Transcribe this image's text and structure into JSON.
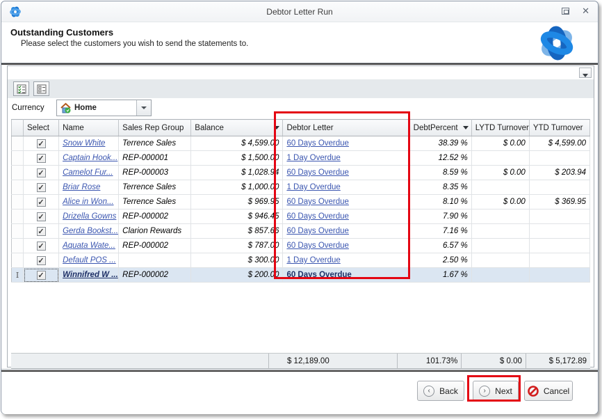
{
  "window": {
    "title": "Debtor Letter Run"
  },
  "header": {
    "title": "Outstanding Customers",
    "subtitle": "Please select the customers you wish to send the statements to."
  },
  "toolbar": {
    "currency_label": "Currency",
    "currency_value": "Home"
  },
  "grid": {
    "columns": [
      "Select",
      "Name",
      "Sales Rep Group",
      "Balance",
      "Debtor Letter",
      "DebtPercent",
      "LYTD Turnover",
      "YTD Turnover"
    ],
    "rows": [
      {
        "checked": true,
        "name": "Snow White",
        "sales_rep_group": "Terrence Sales",
        "balance": "$ 4,599.00",
        "debtor_letter": "60 Days Overdue",
        "debt_percent": "38.39 %",
        "lytd_turnover": "$ 0.00",
        "ytd_turnover": "$ 4,599.00"
      },
      {
        "checked": true,
        "name": "Captain Hook...",
        "sales_rep_group": "REP-000001",
        "balance": "$ 1,500.00",
        "debtor_letter": "1 Day Overdue",
        "debt_percent": "12.52 %",
        "lytd_turnover": "",
        "ytd_turnover": ""
      },
      {
        "checked": true,
        "name": "Camelot Fur...",
        "sales_rep_group": "REP-000003",
        "balance": "$ 1,028.94",
        "debtor_letter": "60 Days Overdue",
        "debt_percent": "8.59 %",
        "lytd_turnover": "$ 0.00",
        "ytd_turnover": "$ 203.94"
      },
      {
        "checked": true,
        "name": "Briar Rose",
        "sales_rep_group": "Terrence Sales",
        "balance": "$ 1,000.00",
        "debtor_letter": "1 Day Overdue",
        "debt_percent": "8.35 %",
        "lytd_turnover": "",
        "ytd_turnover": ""
      },
      {
        "checked": true,
        "name": "Alice in Won...",
        "sales_rep_group": "Terrence Sales",
        "balance": "$ 969.95",
        "debtor_letter": "60 Days Overdue",
        "debt_percent": "8.10 %",
        "lytd_turnover": "$ 0.00",
        "ytd_turnover": "$ 369.95"
      },
      {
        "checked": true,
        "name": "Drizella Gowns",
        "sales_rep_group": "REP-000002",
        "balance": "$ 946.45",
        "debtor_letter": "60 Days Overdue",
        "debt_percent": "7.90 %",
        "lytd_turnover": "",
        "ytd_turnover": ""
      },
      {
        "checked": true,
        "name": "Gerda Bookst...",
        "sales_rep_group": "Clarion Rewards",
        "balance": "$ 857.66",
        "debtor_letter": "60 Days Overdue",
        "debt_percent": "7.16 %",
        "lytd_turnover": "",
        "ytd_turnover": ""
      },
      {
        "checked": true,
        "name": "Aquata Wate...",
        "sales_rep_group": "REP-000002",
        "balance": "$ 787.00",
        "debtor_letter": "60 Days Overdue",
        "debt_percent": "6.57 %",
        "lytd_turnover": "",
        "ytd_turnover": ""
      },
      {
        "checked": true,
        "name": "Default POS ...",
        "sales_rep_group": "",
        "balance": "$ 300.00",
        "debtor_letter": "1 Day Overdue",
        "debt_percent": "2.50 %",
        "lytd_turnover": "",
        "ytd_turnover": ""
      },
      {
        "checked": true,
        "name": "Winnifred W ...",
        "sales_rep_group": "REP-000002",
        "balance": "$ 200.00",
        "debtor_letter": "60 Days Overdue",
        "debt_percent": "1.67 %",
        "lytd_turnover": "",
        "ytd_turnover": "",
        "highlighted": true
      }
    ],
    "totals": {
      "balance": "$ 12,189.00",
      "debt_percent": "101.73%",
      "lytd_turnover": "$ 0.00",
      "ytd_turnover": "$ 5,172.89"
    }
  },
  "footer": {
    "back_label": "Back",
    "next_label": "Next",
    "cancel_label": "Cancel"
  },
  "colors": {
    "highlight_red": "#e40613",
    "link_blue": "#3b56b0",
    "selected_row": "#dbe6f2",
    "logo_blue": "#1976d2"
  }
}
